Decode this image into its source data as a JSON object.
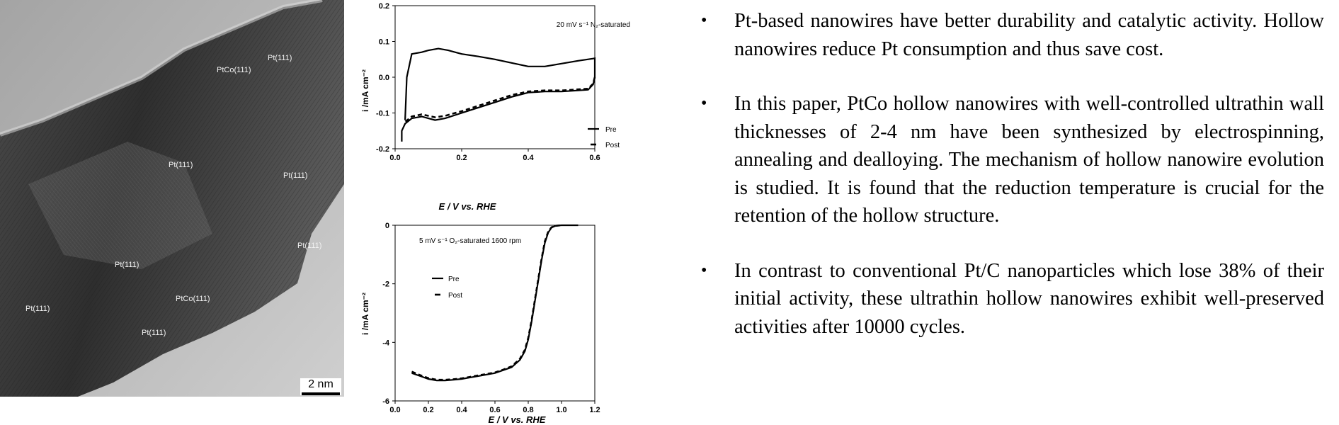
{
  "micrograph": {
    "labels": [
      "Pt(111)",
      "PtCo(111)",
      "Pt(111)",
      "Pt(111)",
      "Pt(111)",
      "Pt(111)",
      "Pt(111)",
      "PtCo(111)",
      "Pt(111)"
    ],
    "scale_bar": "2 nm"
  },
  "chart_data": [
    {
      "type": "line",
      "annotation": "20 mV s⁻¹  N₂-saturated",
      "xlabel": "E / V vs. RHE",
      "ylabel": "i /mA cm⁻²",
      "xlim": [
        0,
        0.6
      ],
      "ylim": [
        -0.2,
        0.2
      ],
      "xticks": [
        "0.0",
        "0.2",
        "0.4",
        "0.6"
      ],
      "yticks": [
        "0.2",
        "0.1",
        "0.0",
        "-0.1",
        "-0.2"
      ],
      "legend": [
        "Pre",
        "Post"
      ],
      "legend_position": "right",
      "series": [
        {
          "name": "Pre",
          "x": [
            0.03,
            0.035,
            0.05,
            0.08,
            0.1,
            0.13,
            0.16,
            0.2,
            0.25,
            0.3,
            0.35,
            0.4,
            0.45,
            0.5,
            0.55,
            0.595,
            0.6,
            0.6,
            0.595,
            0.58,
            0.55,
            0.5,
            0.45,
            0.4,
            0.35,
            0.3,
            0.25,
            0.2,
            0.15,
            0.12,
            0.1,
            0.08,
            0.05,
            0.03,
            0.02,
            0.02
          ],
          "y": [
            -0.12,
            0.0,
            0.065,
            0.07,
            0.075,
            0.08,
            0.075,
            0.065,
            0.058,
            0.05,
            0.04,
            0.03,
            0.03,
            0.038,
            0.046,
            0.052,
            0.053,
            0.0,
            -0.02,
            -0.035,
            -0.037,
            -0.04,
            -0.04,
            -0.043,
            -0.055,
            -0.07,
            -0.085,
            -0.1,
            -0.115,
            -0.12,
            -0.115,
            -0.11,
            -0.115,
            -0.13,
            -0.15,
            -0.18
          ]
        },
        {
          "name": "Post",
          "x": [
            0.6,
            0.595,
            0.58,
            0.55,
            0.5,
            0.45,
            0.4,
            0.35,
            0.3,
            0.25,
            0.2,
            0.15,
            0.12,
            0.1,
            0.08,
            0.05,
            0.03
          ],
          "y": [
            0.0,
            -0.018,
            -0.032,
            -0.034,
            -0.037,
            -0.037,
            -0.04,
            -0.05,
            -0.065,
            -0.08,
            -0.095,
            -0.108,
            -0.112,
            -0.108,
            -0.104,
            -0.11,
            -0.125
          ]
        }
      ]
    },
    {
      "type": "line",
      "annotation": "5 mV s⁻¹  O₂-saturated   1600 rpm",
      "xlabel": "E / V vs. RHE",
      "ylabel": "i /mA cm⁻²",
      "xlim": [
        0,
        1.2
      ],
      "ylim": [
        -6,
        0
      ],
      "xticks": [
        "0.0",
        "0.2",
        "0.4",
        "0.6",
        "0.8",
        "1.0",
        "1.2"
      ],
      "yticks": [
        "0",
        "-2",
        "-4",
        "-6"
      ],
      "legend": [
        "Pre",
        "Post"
      ],
      "legend_position": "left",
      "series": [
        {
          "name": "Pre",
          "x": [
            0.1,
            0.15,
            0.2,
            0.25,
            0.3,
            0.35,
            0.4,
            0.45,
            0.5,
            0.55,
            0.6,
            0.65,
            0.7,
            0.75,
            0.78,
            0.8,
            0.82,
            0.84,
            0.86,
            0.88,
            0.9,
            0.92,
            0.94,
            0.96,
            0.98,
            1.0,
            1.05,
            1.1
          ],
          "y": [
            -5.05,
            -5.15,
            -5.25,
            -5.3,
            -5.3,
            -5.28,
            -5.25,
            -5.2,
            -5.15,
            -5.1,
            -5.05,
            -4.95,
            -4.85,
            -4.6,
            -4.3,
            -3.9,
            -3.3,
            -2.6,
            -1.9,
            -1.2,
            -0.6,
            -0.25,
            -0.08,
            -0.03,
            -0.01,
            0.0,
            0.0,
            0.0
          ]
        },
        {
          "name": "Post",
          "x": [
            0.1,
            0.15,
            0.2,
            0.25,
            0.3,
            0.35,
            0.4,
            0.45,
            0.5,
            0.55,
            0.6,
            0.65,
            0.7,
            0.75,
            0.78,
            0.8,
            0.82,
            0.84,
            0.86,
            0.88,
            0.9,
            0.92,
            0.94,
            0.96,
            0.98,
            1.0
          ],
          "y": [
            -5.0,
            -5.12,
            -5.22,
            -5.28,
            -5.28,
            -5.26,
            -5.23,
            -5.18,
            -5.13,
            -5.08,
            -5.03,
            -4.93,
            -4.82,
            -4.56,
            -4.25,
            -3.85,
            -3.25,
            -2.55,
            -1.85,
            -1.15,
            -0.55,
            -0.22,
            -0.07,
            -0.02,
            -0.01,
            0.0
          ]
        }
      ]
    }
  ],
  "bullets": [
    "Pt-based nanowires have better durability and catalytic activity. Hollow nanowires reduce Pt consumption and thus save cost.",
    "In this paper, PtCo hollow nanowires with well-controlled ultrathin wall thicknesses of 2-4 nm have been synthesized by electrospinning, annealing and dealloying. The mechanism of hollow nanowire evolution is studied. It is found that the reduction temperature is crucial for the retention of the hollow structure.",
    "In contrast to conventional Pt/C nanoparticles which lose 38% of their initial activity, these ultrathin hollow nanowires exhibit well-preserved activities after 10000 cycles."
  ],
  "bullet_symbol": "•"
}
